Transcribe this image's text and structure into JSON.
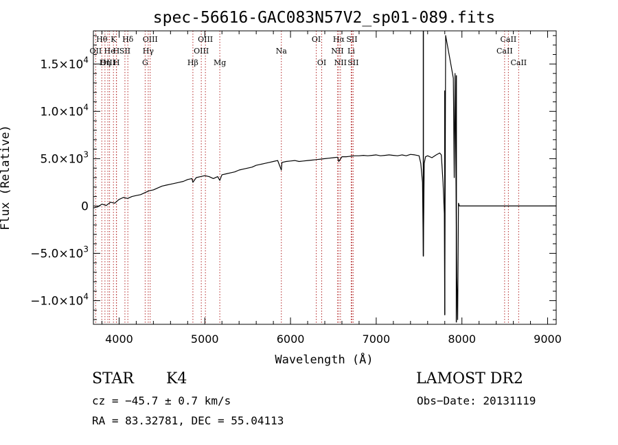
{
  "chart_data": {
    "type": "line",
    "title": "spec-56616-GAC083N57V2_sp01-089.fits",
    "xlabel": "Wavelength (Å)",
    "ylabel": "Flux (Relative)",
    "xlim": [
      3700,
      9100
    ],
    "ylim": [
      -12500,
      18500
    ],
    "x_ticks": [
      4000,
      5000,
      6000,
      7000,
      8000,
      9000
    ],
    "x_tick_labels": [
      "4000",
      "5000",
      "6000",
      "7000",
      "8000",
      "9000"
    ],
    "y_ticks": [
      15000,
      10000,
      5000,
      0,
      -5000,
      -10000
    ],
    "y_tick_labels": [
      {
        "mant": "1.5×10",
        "exp": "4"
      },
      {
        "mant": "1.0×10",
        "exp": "4"
      },
      {
        "mant": "5.0×10",
        "exp": "3"
      },
      {
        "mant": "0",
        "exp": ""
      },
      {
        "mant": "−5.0×10",
        "exp": "3"
      },
      {
        "mant": "−1.0×10",
        "exp": "4"
      }
    ],
    "grid": false,
    "series": [
      {
        "color": "#000000",
        "x": [
          3700,
          3750,
          3800,
          3850,
          3900,
          3950,
          4000,
          4050,
          4100,
          4150,
          4200,
          4250,
          4300,
          4350,
          4400,
          4450,
          4500,
          4550,
          4600,
          4650,
          4700,
          4750,
          4800,
          4850,
          4861,
          4900,
          4950,
          5000,
          5050,
          5100,
          5150,
          5175,
          5200,
          5250,
          5300,
          5350,
          5400,
          5450,
          5500,
          5550,
          5600,
          5650,
          5700,
          5750,
          5800,
          5850,
          5893,
          5900,
          5950,
          6000,
          6050,
          6100,
          6150,
          6200,
          6250,
          6300,
          6350,
          6400,
          6450,
          6500,
          6550,
          6563,
          6600,
          6650,
          6700,
          6750,
          6800,
          6850,
          6900,
          6950,
          7000,
          7050,
          7100,
          7150,
          7200,
          7250,
          7300,
          7350,
          7400,
          7450,
          7500,
          7520,
          7540,
          7550,
          7560,
          7575,
          7600,
          7650,
          7700,
          7740,
          7760,
          7780,
          7795,
          7800,
          7810,
          7830,
          7870,
          7900,
          7910,
          7920,
          7930,
          7940,
          7950,
          7960,
          7970,
          9100
        ],
        "y": [
          -200,
          -100,
          200,
          50,
          400,
          300,
          700,
          900,
          800,
          1000,
          1100,
          1200,
          1400,
          1600,
          1700,
          1900,
          2100,
          2200,
          2300,
          2400,
          2500,
          2600,
          2800,
          2900,
          2500,
          3000,
          3100,
          3200,
          3100,
          2900,
          3100,
          2700,
          3300,
          3400,
          3500,
          3600,
          3800,
          3900,
          4000,
          4100,
          4300,
          4400,
          4500,
          4600,
          4700,
          4800,
          3800,
          4600,
          4700,
          4750,
          4800,
          4700,
          4750,
          4800,
          4850,
          4900,
          4950,
          5000,
          5050,
          5100,
          5150,
          4700,
          5200,
          5200,
          5250,
          5300,
          5300,
          5350,
          5300,
          5350,
          5400,
          5300,
          5350,
          5400,
          5350,
          5300,
          5400,
          5300,
          5450,
          5400,
          5300,
          4500,
          2500,
          -5300,
          4500,
          5200,
          5300,
          5100,
          5400,
          5600,
          5400,
          2500,
          -800,
          -11500,
          18000,
          17000,
          15000,
          13500,
          3000,
          14000,
          3000,
          -7500,
          -12000,
          300,
          0,
          0
        ],
        "spikes": [
          {
            "x": 7550,
            "top": 18500,
            "bottom": -5300
          },
          {
            "x": 7800,
            "top": 12200,
            "bottom": -11500
          },
          {
            "x": 7935,
            "top": 13800,
            "bottom": -12300
          }
        ]
      }
    ],
    "line_markers": [
      {
        "label": "Hθ",
        "x": 3798,
        "row": 0
      },
      {
        "label": "K",
        "x": 3934,
        "row": 0
      },
      {
        "label": "Hδ",
        "x": 4102,
        "row": 0
      },
      {
        "label": "OIII",
        "x": 4363,
        "row": 0
      },
      {
        "label": "OIII",
        "x": 5007,
        "row": 0
      },
      {
        "label": "OI",
        "x": 6300,
        "row": 0
      },
      {
        "label": "Hα",
        "x": 6563,
        "row": 0
      },
      {
        "label": "SII",
        "x": 6716,
        "row": 0
      },
      {
        "label": "CaII",
        "x": 8542,
        "row": 0
      },
      {
        "label": "OII",
        "x": 3727,
        "row": 1
      },
      {
        "label": "He",
        "x": 3889,
        "row": 1
      },
      {
        "label": "H",
        "x": 3968,
        "row": 1
      },
      {
        "label": "SII",
        "x": 4068,
        "row": 1
      },
      {
        "label": "Hγ",
        "x": 4340,
        "row": 1
      },
      {
        "label": "OIII",
        "x": 4959,
        "row": 1
      },
      {
        "label": "Na",
        "x": 5893,
        "row": 1
      },
      {
        "label": "NII",
        "x": 6548,
        "row": 1
      },
      {
        "label": "Li",
        "x": 6708,
        "row": 1
      },
      {
        "label": "CaII",
        "x": 8498,
        "row": 1
      },
      {
        "label": "OIII",
        "x": 3869,
        "row": 2
      },
      {
        "label": "Hη",
        "x": 3835,
        "row": 2
      },
      {
        "label": "H",
        "x": 3970,
        "row": 2
      },
      {
        "label": "G",
        "x": 4304,
        "row": 2
      },
      {
        "label": "Hβ",
        "x": 4861,
        "row": 2
      },
      {
        "label": "Mg",
        "x": 5175,
        "row": 2
      },
      {
        "label": "OI",
        "x": 6364,
        "row": 2
      },
      {
        "label": "NII",
        "x": 6583,
        "row": 2
      },
      {
        "label": "SII",
        "x": 6731,
        "row": 2
      },
      {
        "label": "CaII",
        "x": 8662,
        "row": 2
      }
    ]
  },
  "info": {
    "object_class": "STAR",
    "subclass": "K4",
    "survey": "LAMOST DR2",
    "cz_text": "cz = −45.7 ± 0.7 km/s",
    "obs_date_text": "Obs−Date: 20131119",
    "coords_text": "RA =  83.32781, DEC =  55.04113"
  }
}
